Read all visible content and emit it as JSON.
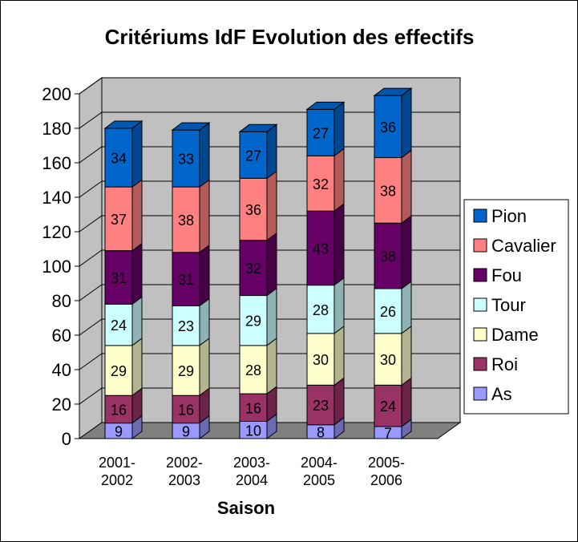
{
  "chart_data": {
    "type": "bar",
    "stacked": true,
    "three_d": true,
    "title": "Critériums IdF Evolution des effectifs",
    "xlabel": "Saison",
    "ylabel": "",
    "ylim": [
      0,
      200
    ],
    "yticks": [
      "0",
      "20",
      "40",
      "60",
      "80",
      "100",
      "120",
      "140",
      "160",
      "180",
      "200"
    ],
    "categories": [
      "2001-2002",
      "2002-2003",
      "2003-2004",
      "2004-2005",
      "2005-2006"
    ],
    "category_lines": [
      [
        "2001-",
        "2002"
      ],
      [
        "2002-",
        "2003"
      ],
      [
        "2003-",
        "2004"
      ],
      [
        "2004-",
        "2005"
      ],
      [
        "2005-",
        "2006"
      ]
    ],
    "grid": true,
    "legend_position": "right",
    "series": [
      {
        "name": "As",
        "values": [
          9,
          9,
          10,
          8,
          7
        ],
        "color": "#9999FF"
      },
      {
        "name": "Roi",
        "values": [
          16,
          16,
          16,
          23,
          24
        ],
        "color": "#993366"
      },
      {
        "name": "Dame",
        "values": [
          29,
          29,
          28,
          30,
          30
        ],
        "color": "#FFFFCC"
      },
      {
        "name": "Tour",
        "values": [
          24,
          23,
          29,
          28,
          26
        ],
        "color": "#CCFFFF"
      },
      {
        "name": "Fou",
        "values": [
          31,
          31,
          32,
          43,
          38
        ],
        "color": "#660066"
      },
      {
        "name": "Cavalier",
        "values": [
          37,
          38,
          36,
          32,
          38
        ],
        "color": "#FF8080"
      },
      {
        "name": "Pion",
        "values": [
          34,
          33,
          27,
          27,
          36
        ],
        "color": "#0066CC"
      }
    ],
    "legend_order": [
      "Pion",
      "Cavalier",
      "Fou",
      "Tour",
      "Dame",
      "Roi",
      "As"
    ],
    "colors": {
      "wall": "#C0C0C0",
      "floor": "#808080",
      "gridline": "#000000",
      "background": "#FFFFFF"
    }
  }
}
